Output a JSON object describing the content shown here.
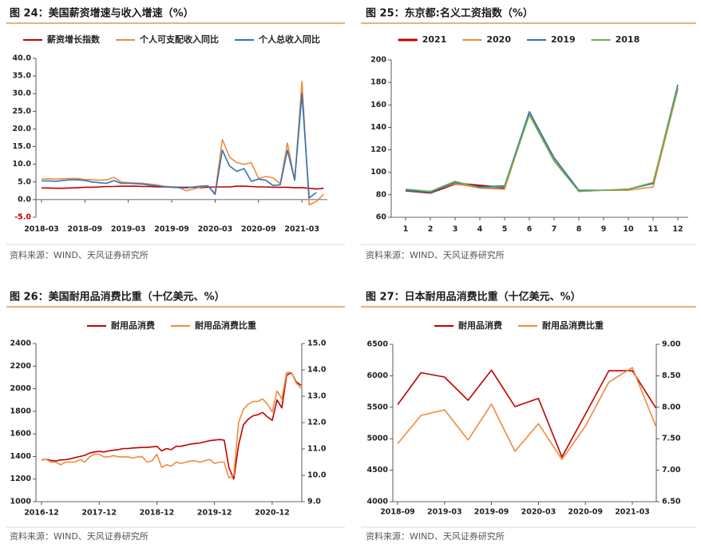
{
  "chart_data": [
    {
      "type": "line",
      "title": "图 24：美国薪资增速与收入增速（%）",
      "source": "资料来源：WIND、天风证券研究所",
      "x": [
        "2018-03",
        "2018-04",
        "2018-05",
        "2018-06",
        "2018-07",
        "2018-08",
        "2018-09",
        "2018-10",
        "2018-11",
        "2018-12",
        "2019-01",
        "2019-02",
        "2019-03",
        "2019-04",
        "2019-05",
        "2019-06",
        "2019-07",
        "2019-08",
        "2019-09",
        "2019-10",
        "2019-11",
        "2019-12",
        "2020-01",
        "2020-02",
        "2020-03",
        "2020-04",
        "2020-05",
        "2020-06",
        "2020-07",
        "2020-08",
        "2020-09",
        "2020-10",
        "2020-11",
        "2020-12",
        "2021-01",
        "2021-02",
        "2021-03",
        "2021-04",
        "2021-05",
        "2021-06"
      ],
      "xticks": [
        "2018-03",
        "2018-09",
        "2019-03",
        "2019-09",
        "2020-03",
        "2020-09",
        "2021-03"
      ],
      "ylim": [
        -5,
        40
      ],
      "yticks": [
        {
          "value": -5,
          "label": "-5.0"
        },
        {
          "value": 0,
          "label": "0.0"
        },
        {
          "value": 5,
          "label": "5.0"
        },
        {
          "value": 10,
          "label": "10.0"
        },
        {
          "value": 15,
          "label": "15.0"
        },
        {
          "value": 20,
          "label": "20.0"
        },
        {
          "value": 25,
          "label": "25.0"
        },
        {
          "value": 30,
          "label": "30.0"
        },
        {
          "value": 35,
          "label": "35.0"
        },
        {
          "value": 40,
          "label": "40.0"
        }
      ],
      "series": [
        {
          "name": "薪资增长指数",
          "color": "#c00000",
          "values": [
            3.3,
            3.3,
            3.2,
            3.2,
            3.3,
            3.4,
            3.5,
            3.5,
            3.6,
            3.7,
            3.7,
            3.8,
            3.8,
            3.8,
            3.7,
            3.7,
            3.6,
            3.6,
            3.6,
            3.5,
            3.5,
            3.5,
            3.4,
            3.5,
            3.6,
            3.6,
            3.6,
            3.8,
            3.8,
            3.7,
            3.6,
            3.6,
            3.5,
            3.5,
            3.5,
            3.4,
            3.4,
            3.2,
            3.0,
            3.2
          ]
        },
        {
          "name": "个人可支配收入同比",
          "color": "#f08a3c",
          "values": [
            5.8,
            5.9,
            5.8,
            5.9,
            6.0,
            6.0,
            5.7,
            5.6,
            5.5,
            5.6,
            6.3,
            5.0,
            4.8,
            4.7,
            4.6,
            4.4,
            4.1,
            3.8,
            3.6,
            3.4,
            2.5,
            3.0,
            3.6,
            3.8,
            1.8,
            17.0,
            12.0,
            10.5,
            10.0,
            10.5,
            6.0,
            6.5,
            6.2,
            4.5,
            16.0,
            5.5,
            33.5,
            -1.5,
            -0.5,
            1.5
          ]
        },
        {
          "name": "个人总收入同比",
          "color": "#2e75b6",
          "values": [
            5.3,
            5.3,
            5.2,
            5.4,
            5.6,
            5.6,
            5.4,
            5.0,
            4.8,
            4.6,
            5.4,
            4.6,
            4.6,
            4.5,
            4.4,
            4.1,
            3.9,
            3.6,
            3.5,
            3.4,
            3.3,
            3.6,
            3.8,
            3.9,
            1.5,
            14.0,
            9.5,
            8.0,
            8.8,
            5.2,
            5.8,
            5.5,
            4.0,
            4.2,
            14.0,
            5.5,
            30.0,
            0.5,
            2.0,
            null
          ]
        }
      ]
    },
    {
      "type": "line",
      "title": "图 25：东京都:名义工资指数（%）",
      "source": "资料来源：WIND、天风证券研究所",
      "x": [
        1,
        2,
        3,
        4,
        5,
        6,
        7,
        8,
        9,
        10,
        11,
        12
      ],
      "ylim": [
        60,
        200
      ],
      "yticks": [
        60,
        80,
        100,
        120,
        140,
        160,
        180,
        200
      ],
      "series": [
        {
          "name": "2021",
          "color": "#c00000",
          "values": [
            84,
            82,
            90,
            88,
            86,
            null,
            null,
            null,
            null,
            null,
            null,
            null
          ]
        },
        {
          "name": "2020",
          "color": "#f08a3c",
          "values": [
            84,
            83,
            90,
            86,
            85,
            152,
            112,
            83,
            84,
            84,
            87,
            174
          ]
        },
        {
          "name": "2019",
          "color": "#2e75b6",
          "values": [
            84,
            82,
            91,
            87,
            88,
            154,
            113,
            84,
            84,
            85,
            90,
            178
          ]
        },
        {
          "name": "2018",
          "color": "#70ad47",
          "values": [
            85,
            83,
            92,
            86,
            87,
            151,
            110,
            83,
            84,
            85,
            91,
            175
          ]
        }
      ]
    },
    {
      "type": "line",
      "title": "图 26：美国耐用品消费比重（十亿美元、%）",
      "source": "资料来源：WIND、天风证券研究所",
      "x": [
        "2016-12",
        "2017-01",
        "2017-02",
        "2017-03",
        "2017-04",
        "2017-05",
        "2017-06",
        "2017-07",
        "2017-08",
        "2017-09",
        "2017-10",
        "2017-11",
        "2017-12",
        "2018-01",
        "2018-02",
        "2018-03",
        "2018-04",
        "2018-05",
        "2018-06",
        "2018-07",
        "2018-08",
        "2018-09",
        "2018-10",
        "2018-11",
        "2018-12",
        "2019-01",
        "2019-02",
        "2019-03",
        "2019-04",
        "2019-05",
        "2019-06",
        "2019-07",
        "2019-08",
        "2019-09",
        "2019-10",
        "2019-11",
        "2019-12",
        "2020-01",
        "2020-02",
        "2020-03",
        "2020-04",
        "2020-05",
        "2020-06",
        "2020-07",
        "2020-08",
        "2020-09",
        "2020-10",
        "2020-11",
        "2020-12",
        "2021-01",
        "2021-02",
        "2021-03",
        "2021-04",
        "2021-05",
        "2021-06"
      ],
      "xticks": [
        "2016-12",
        "2017-12",
        "2018-12",
        "2019-12",
        "2020-12"
      ],
      "ylim": [
        1000,
        2400
      ],
      "yticks": [
        1000,
        1200,
        1400,
        1600,
        1800,
        2000,
        2200,
        2400
      ],
      "y2lim": [
        9,
        15
      ],
      "y2ticks": [
        {
          "value": 9,
          "label": "9.0"
        },
        {
          "value": 10,
          "label": "10.0"
        },
        {
          "value": 11,
          "label": "11.0"
        },
        {
          "value": 12,
          "label": "12.0"
        },
        {
          "value": 13,
          "label": "13.0"
        },
        {
          "value": 14,
          "label": "14.0"
        },
        {
          "value": 15,
          "label": "15.0"
        }
      ],
      "series": [
        {
          "name": "耐用品消费",
          "color": "#c00000",
          "values": [
            1370,
            1375,
            1365,
            1360,
            1370,
            1372,
            1380,
            1390,
            1400,
            1410,
            1430,
            1440,
            1445,
            1440,
            1450,
            1455,
            1460,
            1470,
            1470,
            1475,
            1478,
            1480,
            1480,
            1485,
            1490,
            1450,
            1470,
            1460,
            1490,
            1490,
            1500,
            1510,
            1515,
            1520,
            1530,
            1540,
            1545,
            1550,
            1545,
            1300,
            1200,
            1500,
            1680,
            1730,
            1760,
            1770,
            1790,
            1750,
            1720,
            1900,
            1830,
            2120,
            2140,
            2060,
            2030
          ]
        },
        {
          "name": "耐用品消费比重",
          "color": "#f08a3c",
          "axis": "y2",
          "values": [
            10.6,
            10.6,
            10.5,
            10.5,
            10.4,
            10.5,
            10.5,
            10.5,
            10.6,
            10.5,
            10.7,
            10.8,
            10.8,
            10.7,
            10.7,
            10.75,
            10.7,
            10.7,
            10.7,
            10.65,
            10.7,
            10.7,
            10.5,
            10.55,
            10.8,
            10.3,
            10.4,
            10.35,
            10.5,
            10.45,
            10.5,
            10.55,
            10.55,
            10.5,
            10.55,
            10.6,
            10.45,
            10.5,
            10.5,
            9.9,
            10.0,
            12.0,
            12.5,
            12.7,
            12.8,
            12.8,
            12.9,
            12.7,
            12.4,
            13.2,
            12.9,
            13.9,
            13.9,
            13.5,
            13.3
          ]
        }
      ]
    },
    {
      "type": "line",
      "title": "图 27：日本耐用品消费比重（十亿美元、%）",
      "source": "资料来源：WIND、天风证券研究所",
      "x": [
        "2018-09",
        "2018-12",
        "2019-03",
        "2019-06",
        "2019-09",
        "2019-12",
        "2020-03",
        "2020-06",
        "2020-09",
        "2020-12",
        "2021-03",
        "2021-06"
      ],
      "xticks": [
        "2018-09",
        "2019-03",
        "2019-09",
        "2020-03",
        "2020-09",
        "2021-03"
      ],
      "ylim": [
        4000,
        6500
      ],
      "yticks": [
        4000,
        4500,
        5000,
        5500,
        6000,
        6500
      ],
      "y2lim": [
        6.5,
        9
      ],
      "y2ticks": [
        {
          "value": 6.5,
          "label": "6.50"
        },
        {
          "value": 7,
          "label": "7.00"
        },
        {
          "value": 7.5,
          "label": "7.50"
        },
        {
          "value": 8,
          "label": "8.00"
        },
        {
          "value": 8.5,
          "label": "8.50"
        },
        {
          "value": 9,
          "label": "9.00"
        }
      ],
      "series": [
        {
          "name": "耐用品消费",
          "color": "#c00000",
          "values": [
            5540,
            6050,
            5980,
            5610,
            6090,
            5510,
            5640,
            4710,
            5390,
            6080,
            6080,
            5490
          ]
        },
        {
          "name": "耐用品消费比重",
          "color": "#f08a3c",
          "axis": "y2",
          "values": [
            7.42,
            7.87,
            7.96,
            7.48,
            8.05,
            7.3,
            7.74,
            7.17,
            7.7,
            8.4,
            8.63,
            7.7
          ]
        }
      ]
    }
  ]
}
